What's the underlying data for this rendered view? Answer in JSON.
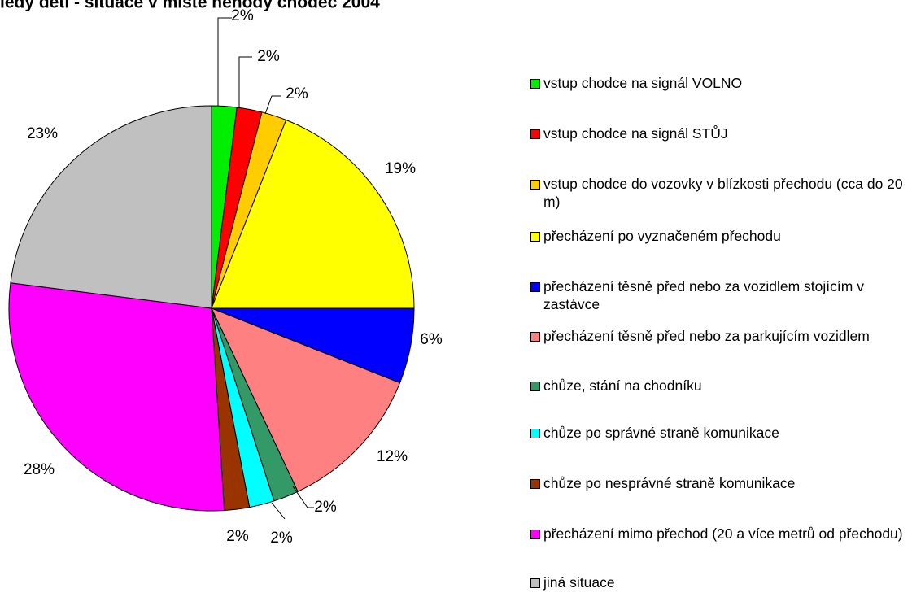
{
  "chart_data": {
    "type": "pie",
    "title": "ledy dětí - situace v místě nehody chodec 2004",
    "categories": [
      "vstup chodce na signál VOLNO",
      "vstup chodce na signál STŮJ",
      "vstup chodce do vozovky v blízkosti přechodu (cca do 20 m)",
      "přecházení po vyznačeném přechodu",
      "přecházení těsně před nebo za vozidlem stojícím v zastávce",
      "přecházení těsně před nebo za parkujícím vozidlem",
      "chůze, stání na chodníku",
      "chůze po správné straně komunikace",
      "chůze po nesprávné straně komunikace",
      "přecházení mimo přechod (20 a více metrů od přechodu)",
      "jiná situace"
    ],
    "values": [
      2,
      2,
      2,
      19,
      6,
      12,
      2,
      2,
      2,
      28,
      23
    ],
    "value_labels": [
      "2%",
      "2%",
      "2%",
      "19%",
      "6%",
      "12%",
      "2%",
      "2%",
      "2%",
      "28%",
      "23%"
    ],
    "colors": [
      "#00ee00",
      "#ff0000",
      "#ffcc00",
      "#ffff00",
      "#0000ff",
      "#ff8080",
      "#339966",
      "#00ffff",
      "#993300",
      "#ff00ff",
      "#c0c0c0"
    ],
    "legend": "right"
  }
}
